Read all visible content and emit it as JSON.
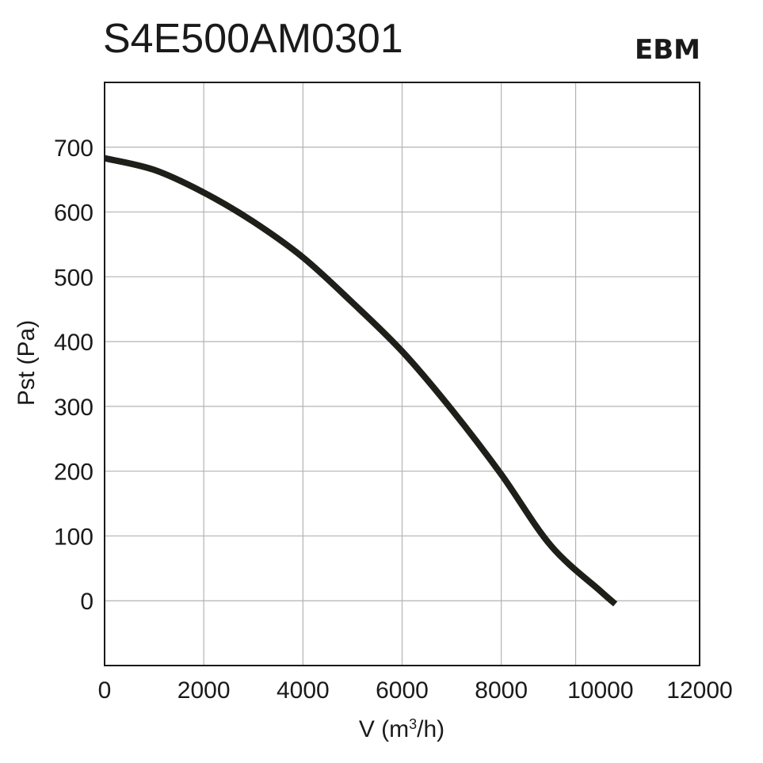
{
  "chart_data": {
    "type": "line",
    "title": "S4E500AM0301",
    "brand": "EBM",
    "xlabel_main": "V (m",
    "xlabel_sup": "3",
    "xlabel_end": "/h)",
    "ylabel": "Pst (Pa)",
    "xlim": [
      0,
      12000
    ],
    "ylim": [
      -100,
      800
    ],
    "xticks": [
      0,
      2000,
      4000,
      6000,
      8000,
      10000,
      12000
    ],
    "xtick_labels": [
      "0",
      "2000",
      "4000",
      "6000",
      "8000",
      "10000",
      "12000"
    ],
    "yticks": [
      0,
      100,
      200,
      300,
      400,
      500,
      600,
      700
    ],
    "ytick_labels": [
      "0",
      "100",
      "200",
      "300",
      "400",
      "500",
      "600",
      "700"
    ],
    "xgrid": [
      2000,
      4000,
      6000,
      8000,
      9500
    ],
    "ygrid": [
      0,
      100,
      200,
      300,
      400,
      500,
      600,
      700
    ],
    "grid": true,
    "series": [
      {
        "x": [
          0,
          1000,
          2000,
          3000,
          4000,
          5000,
          6000,
          7000,
          8000,
          9000,
          10000,
          10300
        ],
        "y": [
          683,
          665,
          630,
          585,
          530,
          460,
          385,
          295,
          195,
          85,
          15,
          -5
        ],
        "color": "#1f1f1a"
      }
    ]
  }
}
